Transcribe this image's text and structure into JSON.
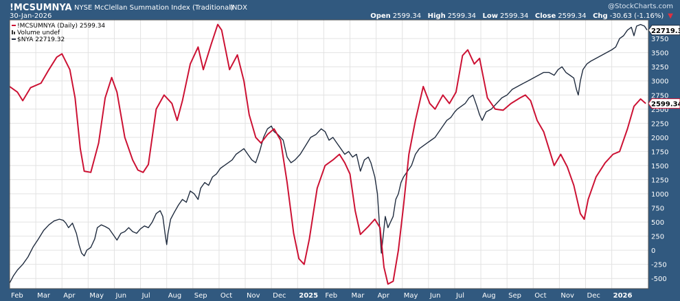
{
  "header": {
    "symbol": "!MCSUMNYA",
    "name": "NYSE McClellan Summation Index (Traditional)",
    "exchange": "INDX",
    "date": "30-Jan-2026",
    "watermark": "@StockCharts.com",
    "open_label": "Open",
    "open": "2599.34",
    "high_label": "High",
    "high": "2599.34",
    "low_label": "Low",
    "low": "2599.34",
    "close_label": "Close",
    "close": "2599.34",
    "chg_label": "Chg",
    "chg": "-30.63 (-1.16%)"
  },
  "chart_data": {
    "type": "line",
    "legend_position": "top-left",
    "legend": [
      "!MCSUMNYA (Daily) 2599.34",
      "Volume undef",
      "$NYA 22719.32"
    ],
    "last_value_tags": [
      "22719.32",
      "2599.34"
    ],
    "grid": true,
    "ylim": [
      -680,
      4080
    ],
    "yticks": [
      -500,
      -250,
      0,
      250,
      500,
      750,
      1000,
      1250,
      1500,
      1750,
      2000,
      2250,
      2500,
      2750,
      3000,
      3250,
      3500,
      3750
    ],
    "ytick_labels": [
      "-500",
      "-250",
      "0",
      "250",
      "500",
      "750",
      "1000",
      "1250",
      "1500",
      "1750",
      "2000",
      "2250",
      "2500",
      "2750",
      "3000",
      "3250",
      "3500",
      "3750"
    ],
    "xlim": [
      0,
      24.4
    ],
    "x_ticks": [
      {
        "pos": 0.0,
        "label": "Feb",
        "bold": false
      },
      {
        "pos": 1.0,
        "label": "Mar",
        "bold": false
      },
      {
        "pos": 2.0,
        "label": "Apr",
        "bold": false
      },
      {
        "pos": 3.0,
        "label": "May",
        "bold": false
      },
      {
        "pos": 4.0,
        "label": "Jun",
        "bold": false
      },
      {
        "pos": 5.0,
        "label": "Jul",
        "bold": false
      },
      {
        "pos": 6.0,
        "label": "Aug",
        "bold": false
      },
      {
        "pos": 7.0,
        "label": "Sep",
        "bold": false
      },
      {
        "pos": 8.0,
        "label": "Oct",
        "bold": false
      },
      {
        "pos": 9.0,
        "label": "Nov",
        "bold": false
      },
      {
        "pos": 10.0,
        "label": "Dec",
        "bold": false
      },
      {
        "pos": 11.0,
        "label": "2025",
        "bold": true
      },
      {
        "pos": 12.0,
        "label": "Feb",
        "bold": false
      },
      {
        "pos": 13.0,
        "label": "Mar",
        "bold": false
      },
      {
        "pos": 14.0,
        "label": "Apr",
        "bold": false
      },
      {
        "pos": 15.0,
        "label": "May",
        "bold": false
      },
      {
        "pos": 16.0,
        "label": "Jun",
        "bold": false
      },
      {
        "pos": 17.0,
        "label": "Jul",
        "bold": false
      },
      {
        "pos": 18.0,
        "label": "Aug",
        "bold": false
      },
      {
        "pos": 19.0,
        "label": "Sep",
        "bold": false
      },
      {
        "pos": 20.0,
        "label": "Oct",
        "bold": false
      },
      {
        "pos": 21.0,
        "label": "Nov",
        "bold": false
      },
      {
        "pos": 22.0,
        "label": "Dec",
        "bold": false
      },
      {
        "pos": 23.0,
        "label": "2026",
        "bold": true
      }
    ],
    "series": [
      {
        "name": "!MCSUMNYA",
        "color": "#cc1133",
        "points": [
          [
            0.0,
            2900
          ],
          [
            0.3,
            2800
          ],
          [
            0.5,
            2650
          ],
          [
            0.8,
            2880
          ],
          [
            1.2,
            2960
          ],
          [
            1.5,
            3200
          ],
          [
            1.8,
            3420
          ],
          [
            2.0,
            3480
          ],
          [
            2.3,
            3200
          ],
          [
            2.5,
            2700
          ],
          [
            2.7,
            1800
          ],
          [
            2.85,
            1400
          ],
          [
            3.1,
            1380
          ],
          [
            3.4,
            1900
          ],
          [
            3.65,
            2700
          ],
          [
            3.9,
            3060
          ],
          [
            4.1,
            2800
          ],
          [
            4.4,
            2000
          ],
          [
            4.7,
            1600
          ],
          [
            4.9,
            1420
          ],
          [
            5.1,
            1380
          ],
          [
            5.3,
            1520
          ],
          [
            5.6,
            2500
          ],
          [
            5.9,
            2750
          ],
          [
            6.2,
            2600
          ],
          [
            6.4,
            2300
          ],
          [
            6.6,
            2650
          ],
          [
            6.9,
            3300
          ],
          [
            7.2,
            3600
          ],
          [
            7.4,
            3200
          ],
          [
            7.7,
            3650
          ],
          [
            7.95,
            4000
          ],
          [
            8.1,
            3900
          ],
          [
            8.4,
            3200
          ],
          [
            8.7,
            3460
          ],
          [
            8.95,
            3000
          ],
          [
            9.15,
            2400
          ],
          [
            9.4,
            2000
          ],
          [
            9.6,
            1900
          ],
          [
            9.85,
            2050
          ],
          [
            10.1,
            2150
          ],
          [
            10.35,
            1950
          ],
          [
            10.6,
            1200
          ],
          [
            10.85,
            300
          ],
          [
            11.05,
            -150
          ],
          [
            11.25,
            -250
          ],
          [
            11.45,
            200
          ],
          [
            11.75,
            1100
          ],
          [
            12.05,
            1500
          ],
          [
            12.35,
            1600
          ],
          [
            12.6,
            1700
          ],
          [
            12.8,
            1550
          ],
          [
            13.0,
            1350
          ],
          [
            13.2,
            700
          ],
          [
            13.4,
            280
          ],
          [
            13.7,
            420
          ],
          [
            13.95,
            550
          ],
          [
            14.15,
            400
          ],
          [
            14.3,
            -300
          ],
          [
            14.45,
            -600
          ],
          [
            14.65,
            -550
          ],
          [
            14.85,
            0
          ],
          [
            15.05,
            800
          ],
          [
            15.25,
            1700
          ],
          [
            15.5,
            2300
          ],
          [
            15.8,
            2900
          ],
          [
            16.05,
            2600
          ],
          [
            16.25,
            2500
          ],
          [
            16.55,
            2750
          ],
          [
            16.8,
            2600
          ],
          [
            17.05,
            2800
          ],
          [
            17.3,
            3450
          ],
          [
            17.5,
            3550
          ],
          [
            17.75,
            3300
          ],
          [
            17.95,
            3400
          ],
          [
            18.25,
            2700
          ],
          [
            18.55,
            2500
          ],
          [
            18.85,
            2480
          ],
          [
            19.15,
            2600
          ],
          [
            19.5,
            2700
          ],
          [
            19.7,
            2750
          ],
          [
            19.9,
            2650
          ],
          [
            20.15,
            2300
          ],
          [
            20.4,
            2100
          ],
          [
            20.6,
            1800
          ],
          [
            20.8,
            1500
          ],
          [
            21.05,
            1700
          ],
          [
            21.3,
            1480
          ],
          [
            21.55,
            1150
          ],
          [
            21.8,
            650
          ],
          [
            21.95,
            550
          ],
          [
            22.1,
            900
          ],
          [
            22.4,
            1300
          ],
          [
            22.75,
            1550
          ],
          [
            23.05,
            1700
          ],
          [
            23.3,
            1750
          ],
          [
            23.6,
            2150
          ],
          [
            23.85,
            2550
          ],
          [
            24.1,
            2680
          ],
          [
            24.3,
            2600
          ]
        ]
      },
      {
        "name": "$NYA",
        "color": "#1f2b3e",
        "points": [
          [
            0.0,
            -580
          ],
          [
            0.15,
            -450
          ],
          [
            0.3,
            -350
          ],
          [
            0.5,
            -250
          ],
          [
            0.7,
            -120
          ],
          [
            0.9,
            60
          ],
          [
            1.1,
            200
          ],
          [
            1.3,
            350
          ],
          [
            1.5,
            450
          ],
          [
            1.7,
            520
          ],
          [
            1.9,
            550
          ],
          [
            2.05,
            530
          ],
          [
            2.15,
            480
          ],
          [
            2.25,
            400
          ],
          [
            2.4,
            480
          ],
          [
            2.55,
            300
          ],
          [
            2.65,
            100
          ],
          [
            2.75,
            -50
          ],
          [
            2.85,
            -100
          ],
          [
            2.95,
            0
          ],
          [
            3.1,
            50
          ],
          [
            3.25,
            200
          ],
          [
            3.35,
            400
          ],
          [
            3.5,
            450
          ],
          [
            3.65,
            420
          ],
          [
            3.8,
            380
          ],
          [
            3.95,
            280
          ],
          [
            4.1,
            180
          ],
          [
            4.25,
            300
          ],
          [
            4.4,
            330
          ],
          [
            4.55,
            400
          ],
          [
            4.7,
            330
          ],
          [
            4.85,
            300
          ],
          [
            5.0,
            380
          ],
          [
            5.15,
            430
          ],
          [
            5.3,
            400
          ],
          [
            5.45,
            500
          ],
          [
            5.6,
            650
          ],
          [
            5.75,
            700
          ],
          [
            5.85,
            600
          ],
          [
            5.95,
            250
          ],
          [
            6.0,
            100
          ],
          [
            6.05,
            300
          ],
          [
            6.15,
            550
          ],
          [
            6.3,
            680
          ],
          [
            6.45,
            800
          ],
          [
            6.6,
            900
          ],
          [
            6.75,
            850
          ],
          [
            6.9,
            1050
          ],
          [
            7.05,
            1000
          ],
          [
            7.2,
            900
          ],
          [
            7.3,
            1100
          ],
          [
            7.45,
            1200
          ],
          [
            7.6,
            1150
          ],
          [
            7.75,
            1300
          ],
          [
            7.9,
            1350
          ],
          [
            8.05,
            1450
          ],
          [
            8.2,
            1500
          ],
          [
            8.35,
            1550
          ],
          [
            8.5,
            1600
          ],
          [
            8.65,
            1700
          ],
          [
            8.8,
            1750
          ],
          [
            8.95,
            1800
          ],
          [
            9.1,
            1700
          ],
          [
            9.25,
            1600
          ],
          [
            9.4,
            1550
          ],
          [
            9.55,
            1750
          ],
          [
            9.7,
            2000
          ],
          [
            9.85,
            2150
          ],
          [
            10.0,
            2200
          ],
          [
            10.1,
            2100
          ],
          [
            10.25,
            2050
          ],
          [
            10.45,
            1950
          ],
          [
            10.6,
            1650
          ],
          [
            10.75,
            1550
          ],
          [
            10.9,
            1600
          ],
          [
            11.1,
            1700
          ],
          [
            11.3,
            1850
          ],
          [
            11.5,
            2000
          ],
          [
            11.7,
            2050
          ],
          [
            11.9,
            2150
          ],
          [
            12.05,
            2100
          ],
          [
            12.2,
            1950
          ],
          [
            12.35,
            2000
          ],
          [
            12.5,
            1900
          ],
          [
            12.65,
            1800
          ],
          [
            12.8,
            1700
          ],
          [
            12.95,
            1750
          ],
          [
            13.1,
            1650
          ],
          [
            13.25,
            1700
          ],
          [
            13.4,
            1400
          ],
          [
            13.55,
            1600
          ],
          [
            13.7,
            1650
          ],
          [
            13.8,
            1550
          ],
          [
            13.95,
            1300
          ],
          [
            14.05,
            1000
          ],
          [
            14.12,
            500
          ],
          [
            14.2,
            -50
          ],
          [
            14.28,
            300
          ],
          [
            14.35,
            600
          ],
          [
            14.45,
            400
          ],
          [
            14.55,
            500
          ],
          [
            14.65,
            600
          ],
          [
            14.75,
            900
          ],
          [
            14.85,
            1000
          ],
          [
            14.95,
            1200
          ],
          [
            15.05,
            1300
          ],
          [
            15.2,
            1400
          ],
          [
            15.35,
            1500
          ],
          [
            15.5,
            1700
          ],
          [
            15.65,
            1800
          ],
          [
            15.8,
            1850
          ],
          [
            15.95,
            1900
          ],
          [
            16.1,
            1950
          ],
          [
            16.25,
            2000
          ],
          [
            16.4,
            2100
          ],
          [
            16.55,
            2200
          ],
          [
            16.7,
            2300
          ],
          [
            16.85,
            2350
          ],
          [
            17.0,
            2450
          ],
          [
            17.1,
            2500
          ],
          [
            17.25,
            2550
          ],
          [
            17.4,
            2600
          ],
          [
            17.55,
            2700
          ],
          [
            17.7,
            2750
          ],
          [
            17.85,
            2550
          ],
          [
            17.95,
            2400
          ],
          [
            18.05,
            2300
          ],
          [
            18.2,
            2450
          ],
          [
            18.4,
            2500
          ],
          [
            18.6,
            2600
          ],
          [
            18.8,
            2700
          ],
          [
            19.0,
            2750
          ],
          [
            19.2,
            2850
          ],
          [
            19.4,
            2900
          ],
          [
            19.6,
            2950
          ],
          [
            19.8,
            3000
          ],
          [
            20.0,
            3050
          ],
          [
            20.2,
            3100
          ],
          [
            20.4,
            3150
          ],
          [
            20.6,
            3150
          ],
          [
            20.8,
            3100
          ],
          [
            20.95,
            3200
          ],
          [
            21.1,
            3250
          ],
          [
            21.25,
            3150
          ],
          [
            21.4,
            3100
          ],
          [
            21.55,
            3050
          ],
          [
            21.65,
            2850
          ],
          [
            21.72,
            2750
          ],
          [
            21.8,
            3000
          ],
          [
            21.9,
            3200
          ],
          [
            22.05,
            3300
          ],
          [
            22.2,
            3350
          ],
          [
            22.4,
            3400
          ],
          [
            22.6,
            3450
          ],
          [
            22.8,
            3500
          ],
          [
            23.0,
            3550
          ],
          [
            23.15,
            3600
          ],
          [
            23.3,
            3750
          ],
          [
            23.45,
            3800
          ],
          [
            23.6,
            3900
          ],
          [
            23.75,
            3950
          ],
          [
            23.85,
            3800
          ],
          [
            23.95,
            3970
          ],
          [
            24.1,
            4000
          ],
          [
            24.25,
            3970
          ],
          [
            24.35,
            3900
          ]
        ]
      }
    ]
  }
}
